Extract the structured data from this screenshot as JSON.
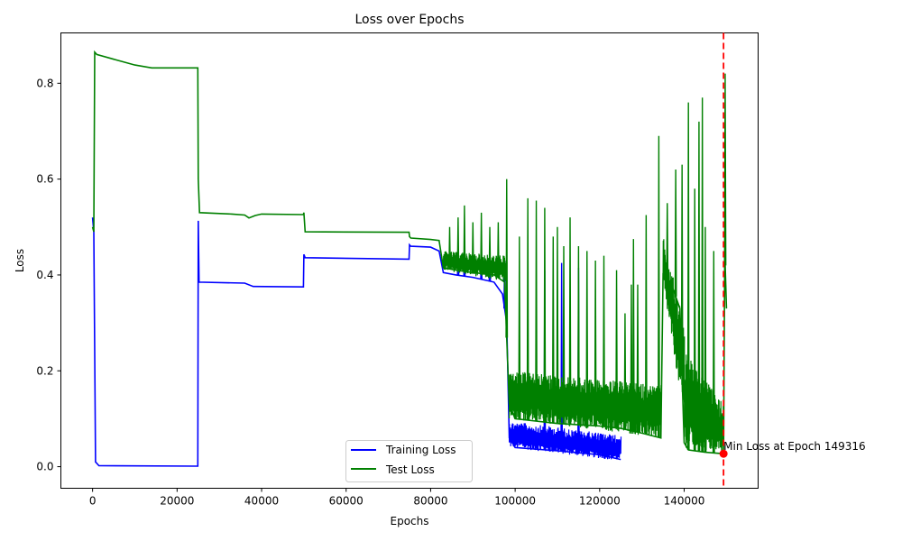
{
  "chart_data": {
    "type": "line",
    "title": "Loss over Epochs",
    "xlabel": "Epochs",
    "ylabel": "Loss",
    "xlim": [
      -7500,
      157500
    ],
    "ylim": [
      -0.045,
      0.905
    ],
    "xticks": [
      0,
      20000,
      40000,
      60000,
      80000,
      100000,
      120000,
      140000
    ],
    "xtick_labels": [
      "0",
      "20000",
      "40000",
      "60000",
      "80000",
      "100000",
      "120000",
      "140000"
    ],
    "yticks": [
      0.0,
      0.2,
      0.4,
      0.6,
      0.8
    ],
    "ytick_labels": [
      "0.0",
      "0.2",
      "0.4",
      "0.6",
      "0.8"
    ],
    "legend_position": "bottom-center",
    "series": [
      {
        "name": "Training Loss",
        "color": "#0000ff",
        "points": [
          [
            0,
            0.52
          ],
          [
            300,
            0.49
          ],
          [
            700,
            0.01
          ],
          [
            1500,
            0.002
          ],
          [
            24900,
            0.001
          ],
          [
            25000,
            0.513
          ],
          [
            25200,
            0.385
          ],
          [
            36000,
            0.383
          ],
          [
            38000,
            0.376
          ],
          [
            49900,
            0.375
          ],
          [
            50000,
            0.443
          ],
          [
            50300,
            0.436
          ],
          [
            74900,
            0.433
          ],
          [
            75000,
            0.463
          ],
          [
            75300,
            0.46
          ],
          [
            80000,
            0.458
          ],
          [
            82000,
            0.45
          ],
          [
            83000,
            0.405
          ],
          [
            86000,
            0.4
          ],
          [
            90000,
            0.395
          ],
          [
            95000,
            0.385
          ],
          [
            97000,
            0.36
          ],
          [
            98000,
            0.3
          ],
          [
            98600,
            0.06
          ],
          [
            100000,
            0.04
          ],
          [
            110000,
            0.033
          ],
          [
            120000,
            0.025
          ],
          [
            125000,
            0.015
          ]
        ],
        "band": {
          "from": 98600,
          "to": 125000,
          "low": [
            0.04,
            0.012
          ],
          "high": [
            0.095,
            0.065
          ]
        },
        "spikes": [
          [
            86500,
            0.455
          ],
          [
            88000,
            0.47
          ],
          [
            92000,
            0.44
          ],
          [
            94000,
            0.425
          ],
          [
            97500,
            0.43
          ],
          [
            107000,
            0.41
          ],
          [
            111000,
            0.425
          ],
          [
            115000,
            0.415
          ]
        ]
      },
      {
        "name": "Test Loss",
        "color": "#008000",
        "points": [
          [
            0,
            0.5
          ],
          [
            300,
            0.49
          ],
          [
            500,
            0.865
          ],
          [
            1000,
            0.86
          ],
          [
            5000,
            0.85
          ],
          [
            10000,
            0.838
          ],
          [
            14000,
            0.832
          ],
          [
            24900,
            0.832
          ],
          [
            25000,
            0.6
          ],
          [
            25300,
            0.53
          ],
          [
            33000,
            0.527
          ],
          [
            36000,
            0.525
          ],
          [
            37000,
            0.519
          ],
          [
            38500,
            0.524
          ],
          [
            40000,
            0.527
          ],
          [
            49900,
            0.526
          ],
          [
            50000,
            0.53
          ],
          [
            50300,
            0.49
          ],
          [
            74900,
            0.489
          ],
          [
            75000,
            0.48
          ],
          [
            75300,
            0.477
          ],
          [
            80000,
            0.474
          ],
          [
            82000,
            0.472
          ],
          [
            83000,
            0.415
          ],
          [
            86000,
            0.41
          ],
          [
            90000,
            0.405
          ],
          [
            95000,
            0.4
          ],
          [
            97500,
            0.385
          ],
          [
            98600,
            0.13
          ],
          [
            100000,
            0.1
          ],
          [
            110000,
            0.09
          ],
          [
            120000,
            0.085
          ],
          [
            125000,
            0.08
          ],
          [
            130000,
            0.07
          ],
          [
            134500,
            0.06
          ],
          [
            135000,
            0.4
          ],
          [
            137000,
            0.38
          ],
          [
            139000,
            0.33
          ],
          [
            140000,
            0.05
          ],
          [
            141000,
            0.035
          ],
          [
            145000,
            0.03
          ],
          [
            149316,
            0.027
          ],
          [
            149600,
            0.45
          ],
          [
            150000,
            0.33
          ]
        ],
        "bands": [
          {
            "from": 83000,
            "to": 98000,
            "low": [
              0.41,
              0.385
            ],
            "high": [
              0.45,
              0.44
            ]
          },
          {
            "from": 98600,
            "to": 134500,
            "low": [
              0.1,
              0.06
            ],
            "high": [
              0.2,
              0.17
            ]
          },
          {
            "from": 135000,
            "to": 140000,
            "low": [
              0.38,
              0.1
            ],
            "high": [
              0.48,
              0.3
            ]
          },
          {
            "from": 140000,
            "to": 149300,
            "low": [
              0.04,
              0.028
            ],
            "high": [
              0.24,
              0.13
            ]
          }
        ],
        "spikes": [
          [
            84500,
            0.5
          ],
          [
            86500,
            0.52
          ],
          [
            88000,
            0.545
          ],
          [
            90000,
            0.51
          ],
          [
            92000,
            0.53
          ],
          [
            94000,
            0.5
          ],
          [
            96000,
            0.51
          ],
          [
            98000,
            0.6
          ],
          [
            101000,
            0.48
          ],
          [
            103000,
            0.56
          ],
          [
            105000,
            0.555
          ],
          [
            107000,
            0.54
          ],
          [
            109000,
            0.48
          ],
          [
            110000,
            0.5
          ],
          [
            111500,
            0.46
          ],
          [
            113000,
            0.52
          ],
          [
            115000,
            0.46
          ],
          [
            117000,
            0.45
          ],
          [
            119000,
            0.43
          ],
          [
            121000,
            0.44
          ],
          [
            124000,
            0.41
          ],
          [
            126000,
            0.32
          ],
          [
            127500,
            0.38
          ],
          [
            128000,
            0.475
          ],
          [
            129000,
            0.38
          ],
          [
            131000,
            0.525
          ],
          [
            134000,
            0.69
          ],
          [
            136000,
            0.55
          ],
          [
            138000,
            0.62
          ],
          [
            139500,
            0.63
          ],
          [
            141000,
            0.76
          ],
          [
            142500,
            0.58
          ],
          [
            143500,
            0.72
          ],
          [
            144300,
            0.77
          ],
          [
            145000,
            0.5
          ],
          [
            147000,
            0.45
          ],
          [
            149700,
            0.82
          ]
        ]
      }
    ],
    "annotation": {
      "text": "Min Loss at Epoch 149316",
      "epoch": 149316,
      "loss": 0.027,
      "line_color": "#ff0000",
      "marker_color": "#ff0000"
    }
  }
}
